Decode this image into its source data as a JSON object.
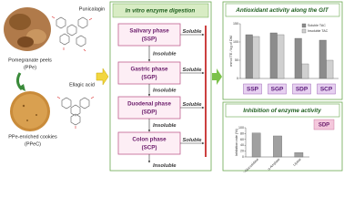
{
  "diagram": {
    "punicalagin": "Punicalagin",
    "peels_name": "Pomegranate peels",
    "peels_abbr": "(PPe)",
    "ellagic": "Ellagic acid",
    "cookies_name": "PPe-enriched cookies",
    "cookies_abbr": "(PPeC)",
    "digestion": {
      "title": "In vitro enzyme digestion",
      "phases": [
        {
          "name": "Salivary phase",
          "abbr": "(SSP)",
          "insoluble": "Insoluble",
          "soluble": "Soluble"
        },
        {
          "name": "Gastric phase",
          "abbr": "(SGP)",
          "insoluble": "Insoluble",
          "soluble": "Soluble"
        },
        {
          "name": "Duodenal phase",
          "abbr": "(SDP)",
          "insoluble": "Insoluble",
          "soluble": "Soluble"
        },
        {
          "name": "Colon phase",
          "abbr": "(SCP)",
          "insoluble": "Insoluble",
          "soluble": "Soluble"
        }
      ]
    }
  },
  "chart_data": [
    {
      "type": "bar",
      "title": "Antioxidant activity along the GIT",
      "y_label": "mmol TE / kg of DM",
      "categories": [
        "SSP",
        "SGP",
        "SDP",
        "SCP"
      ],
      "series": [
        {
          "name": "Soluble TAC",
          "color": "#8c8c8c",
          "values": [
            120,
            125,
            110,
            105
          ]
        },
        {
          "name": "Insoluble TAC",
          "color": "#d0d0d0",
          "values": [
            115,
            120,
            40,
            50
          ]
        }
      ],
      "ylim": [
        0,
        150
      ],
      "yticks": [
        0,
        50,
        100,
        150
      ]
    },
    {
      "type": "bar",
      "title": "Inhibition of enzyme activity",
      "annotation": "SDP",
      "y_label": "Inhibition rate (%)",
      "categories": [
        "α-Glucosidase",
        "α-Amylase",
        "Lipase"
      ],
      "values": [
        82,
        72,
        15
      ],
      "color": "#a0a0a0",
      "ylim": [
        0,
        100
      ],
      "yticks": [
        0,
        20,
        40,
        60,
        80,
        100
      ]
    }
  ]
}
